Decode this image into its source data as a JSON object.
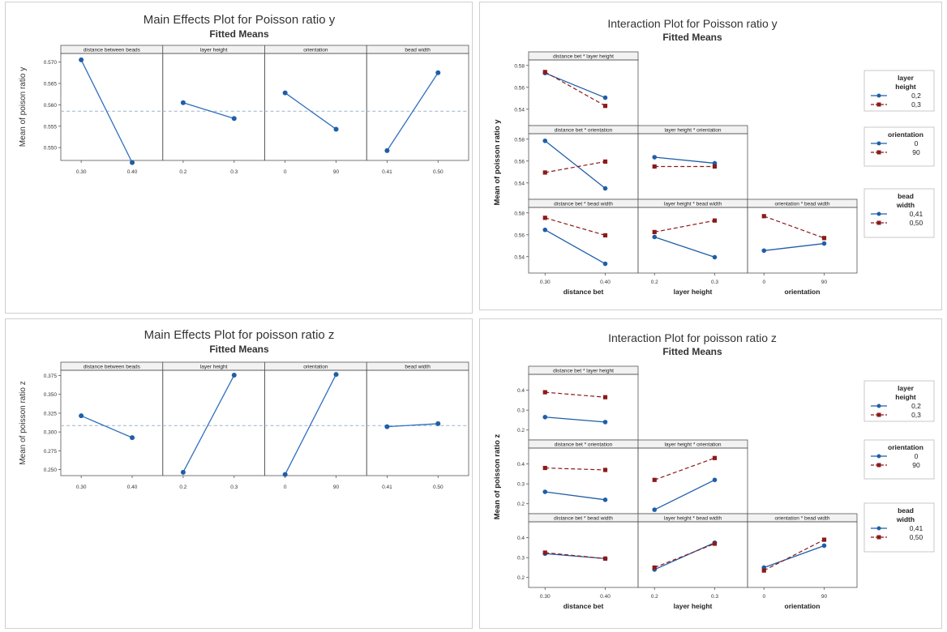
{
  "chart_data": [
    {
      "type": "line",
      "kind": "main_effects",
      "title": "Main Effects Plot for Poisson ratio y",
      "subtitle": "Fitted Means",
      "ylabel": "Mean of poison ratio y",
      "ylim": [
        0.547,
        0.572
      ],
      "yticks": [
        0.55,
        0.555,
        0.56,
        0.565,
        0.57
      ],
      "yticklabels": [
        "0.550",
        "0.555",
        "0.560",
        "0.565",
        "0.570"
      ],
      "reference_line": 0.5585,
      "colors": {
        "line": "#2e6fbf",
        "marker": "#1f5ea8",
        "ref": "#9fb3c8"
      },
      "factors": [
        {
          "name": "distance between beads",
          "levels": [
            "0.30",
            "0.40"
          ],
          "values": [
            0.5705,
            0.5465
          ]
        },
        {
          "name": "layer height",
          "levels": [
            "0.2",
            "0.3"
          ],
          "values": [
            0.5605,
            0.5568
          ]
        },
        {
          "name": "orientation",
          "levels": [
            "0",
            "90"
          ],
          "values": [
            0.5628,
            0.5543
          ]
        },
        {
          "name": "bead width",
          "levels": [
            "0.41",
            "0.50"
          ],
          "values": [
            0.5493,
            0.5675
          ]
        }
      ]
    },
    {
      "type": "line",
      "kind": "interaction",
      "title": "Interaction Plot for Poisson ratio y",
      "subtitle": "Fitted Means",
      "ylabel": "Mean of poisson ratio y",
      "ylim": [
        0.525,
        0.585
      ],
      "yticks": [
        0.54,
        0.56,
        0.58
      ],
      "yticklabels": [
        "0.54",
        "0.56",
        "0.58"
      ],
      "colors": {
        "s1": "#1f5ea8",
        "s2": "#8b1a1a"
      },
      "col_labels": [
        "distance bet",
        "layer height",
        "orientation"
      ],
      "col_ticks": [
        [
          "0.30",
          "0.40"
        ],
        [
          "0.2",
          "0.3"
        ],
        [
          "0",
          "90"
        ]
      ],
      "legends": [
        {
          "title": [
            "layer",
            "height"
          ],
          "items": [
            "0,2",
            "0,3"
          ]
        },
        {
          "title": [
            "orientation"
          ],
          "items": [
            "0",
            "90"
          ]
        },
        {
          "title": [
            "bead",
            "width"
          ],
          "items": [
            "0,41",
            "0,50"
          ]
        }
      ],
      "cells": [
        {
          "row": 0,
          "col": 0,
          "title": "distance bet * layer height",
          "s1": [
            0.573,
            0.5505
          ],
          "s2": [
            0.574,
            0.543
          ]
        },
        {
          "row": 1,
          "col": 0,
          "title": "distance bet * orientation",
          "s1": [
            0.5785,
            0.535
          ],
          "s2": [
            0.5495,
            0.5595
          ]
        },
        {
          "row": 1,
          "col": 1,
          "title": "layer height * orientation",
          "s1": [
            0.5635,
            0.558
          ],
          "s2": [
            0.555,
            0.555
          ]
        },
        {
          "row": 2,
          "col": 0,
          "title": "distance bet * bead width",
          "s1": [
            0.5645,
            0.5335
          ],
          "s2": [
            0.5755,
            0.5595
          ]
        },
        {
          "row": 2,
          "col": 1,
          "title": "layer height * bead width",
          "s1": [
            0.558,
            0.5395
          ],
          "s2": [
            0.5625,
            0.573
          ]
        },
        {
          "row": 2,
          "col": 2,
          "title": "orientation * bead width",
          "s1": [
            0.5455,
            0.552
          ],
          "s2": [
            0.577,
            0.557
          ]
        }
      ]
    },
    {
      "type": "line",
      "kind": "main_effects",
      "title": "Main Effects Plot for poisson ratio z",
      "subtitle": "Fitted Means",
      "ylabel": "Mean of poisson ratio z",
      "ylim": [
        0.242,
        0.382
      ],
      "yticks": [
        0.25,
        0.275,
        0.3,
        0.325,
        0.35,
        0.375
      ],
      "yticklabels": [
        "0.250",
        "0.275",
        "0.300",
        "0.325",
        "0.350",
        "0.375"
      ],
      "reference_line": 0.3085,
      "colors": {
        "line": "#2e6fbf",
        "marker": "#1f5ea8",
        "ref": "#9fb3c8"
      },
      "factors": [
        {
          "name": "distance between beads",
          "levels": [
            "0.30",
            "0.40"
          ],
          "values": [
            0.3215,
            0.2925
          ]
        },
        {
          "name": "layer height",
          "levels": [
            "0.2",
            "0.3"
          ],
          "values": [
            0.2465,
            0.3755
          ]
        },
        {
          "name": "orientation",
          "levels": [
            "0",
            "90"
          ],
          "values": [
            0.2435,
            0.3765
          ]
        },
        {
          "name": "bead width",
          "levels": [
            "0.41",
            "0.50"
          ],
          "values": [
            0.307,
            0.311
          ]
        }
      ]
    },
    {
      "type": "line",
      "kind": "interaction",
      "title": "Interaction Plot for poisson ratio z",
      "subtitle": "Fitted Means",
      "ylabel": "Mean of poisson ratio z",
      "ylim": [
        0.15,
        0.48
      ],
      "yticks": [
        0.2,
        0.3,
        0.4
      ],
      "yticklabels": [
        "0.2",
        "0.3",
        "0.4"
      ],
      "colors": {
        "s1": "#1f5ea8",
        "s2": "#8b1a1a"
      },
      "col_labels": [
        "distance bet",
        "layer height",
        "orientation"
      ],
      "col_ticks": [
        [
          "0.30",
          "0.40"
        ],
        [
          "0.2",
          "0.3"
        ],
        [
          "0",
          "90"
        ]
      ],
      "legends": [
        {
          "title": [
            "layer",
            "height"
          ],
          "items": [
            "0,2",
            "0,3"
          ]
        },
        {
          "title": [
            "orientation"
          ],
          "items": [
            "0",
            "90"
          ]
        },
        {
          "title": [
            "bead",
            "width"
          ],
          "items": [
            "0,41",
            "0,50"
          ]
        }
      ],
      "cells": [
        {
          "row": 0,
          "col": 0,
          "title": "distance bet * layer height",
          "s1": [
            0.265,
            0.24
          ],
          "s2": [
            0.39,
            0.365
          ]
        },
        {
          "row": 1,
          "col": 0,
          "title": "distance bet * orientation",
          "s1": [
            0.26,
            0.22
          ],
          "s2": [
            0.38,
            0.37
          ]
        },
        {
          "row": 1,
          "col": 1,
          "title": "layer height * orientation",
          "s1": [
            0.17,
            0.32
          ],
          "s2": [
            0.32,
            0.43
          ]
        },
        {
          "row": 2,
          "col": 0,
          "title": "distance bet * bead width",
          "s1": [
            0.32,
            0.295
          ],
          "s2": [
            0.325,
            0.295
          ]
        },
        {
          "row": 2,
          "col": 1,
          "title": "layer height * bead width",
          "s1": [
            0.24,
            0.375
          ],
          "s2": [
            0.25,
            0.37
          ]
        },
        {
          "row": 2,
          "col": 2,
          "title": "orientation * bead width",
          "s1": [
            0.25,
            0.36
          ],
          "s2": [
            0.235,
            0.39
          ]
        }
      ]
    }
  ]
}
